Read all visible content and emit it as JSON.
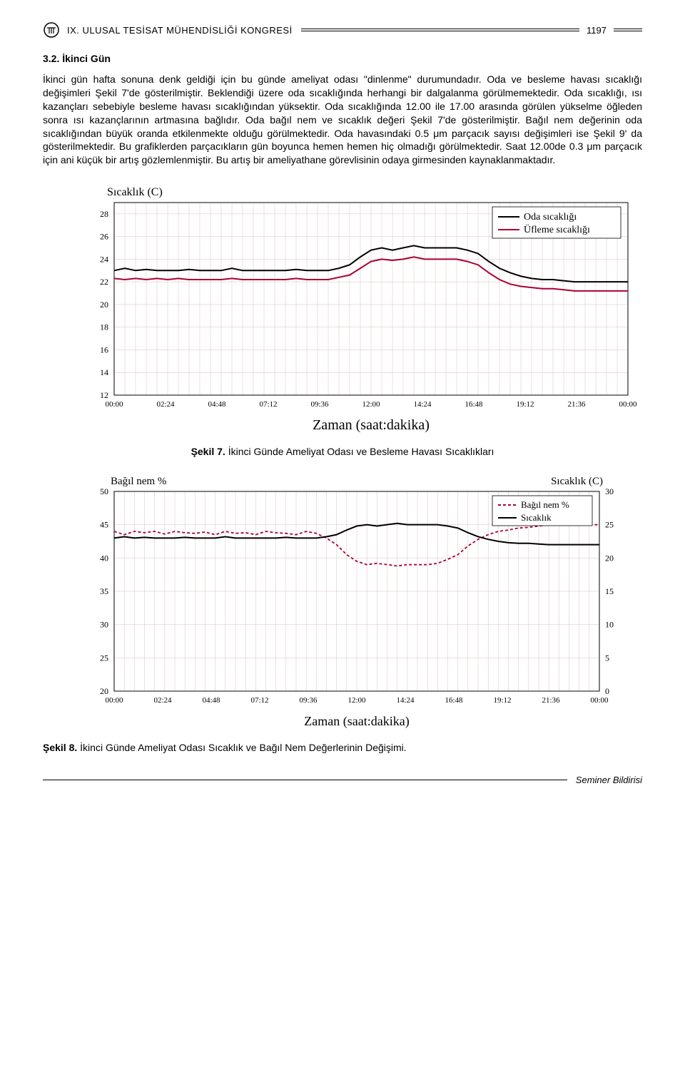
{
  "header": {
    "congress_title": "IX. ULUSAL TESİSAT MÜHENDİSLİĞİ KONGRESİ",
    "page_number": "1197"
  },
  "section": {
    "number": "3.2. İkinci Gün"
  },
  "paragraph": "İkinci gün hafta sonuna denk geldiği için bu günde ameliyat odası \"dinlenme\" durumundadır. Oda ve besleme havası sıcaklığı değişimleri Şekil 7'de gösterilmiştir. Beklendiği üzere oda sıcaklığında herhangi bir dalgalanma görülmemektedir. Oda sıcaklığı, ısı kazançları sebebiyle besleme havası sıcaklığından yüksektir. Oda sıcaklığında 12.00 ile 17.00 arasında görülen yükselme öğleden sonra ısı kazançlarının artmasına bağlıdır. Oda bağıl nem ve sıcaklık değeri Şekil 7'de gösterilmiştir. Bağıl nem değerinin oda sıcaklığından büyük oranda etkilenmekte olduğu görülmektedir. Oda havasındaki 0.5 μm parçacık sayısı değişimleri ise Şekil 9' da gösterilmektedir. Bu grafiklerden parçacıkların gün boyunca hemen hemen hiç olmadığı görülmektedir. Saat 12.00de 0.3 μm parçacık için ani küçük bir artış gözlemlenmiştir. Bu artış bir ameliyathane görevlisinin odaya girmesinden kaynaklanmaktadır.",
  "chart7": {
    "type": "line",
    "y_label": "Sıcaklık (C)",
    "x_label": "Zaman (saat:dakika)",
    "legend": [
      "Oda sıcaklığı",
      "Üfleme sıcaklığı"
    ],
    "legend_colors": [
      "#000000",
      "#aa0033"
    ],
    "y_ticks": [
      12,
      14,
      16,
      18,
      20,
      22,
      24,
      26,
      28
    ],
    "ylim": [
      12,
      29
    ],
    "x_ticks": [
      "00:00",
      "02:24",
      "04:48",
      "07:12",
      "09:36",
      "12:00",
      "14:24",
      "16:48",
      "19:12",
      "21:36",
      "00:00"
    ],
    "grid_color": "#d9c0c0",
    "background_color": "#ffffff",
    "series": {
      "oda": {
        "color": "#000000",
        "width": 2,
        "points": [
          [
            0,
            23.0
          ],
          [
            0.5,
            23.2
          ],
          [
            1,
            23.0
          ],
          [
            1.5,
            23.1
          ],
          [
            2,
            23.0
          ],
          [
            2.5,
            23.0
          ],
          [
            3,
            23.0
          ],
          [
            3.5,
            23.1
          ],
          [
            4,
            23.0
          ],
          [
            4.5,
            23.0
          ],
          [
            5,
            23.0
          ],
          [
            5.5,
            23.2
          ],
          [
            6,
            23.0
          ],
          [
            6.5,
            23.0
          ],
          [
            7,
            23.0
          ],
          [
            7.5,
            23.0
          ],
          [
            8,
            23.0
          ],
          [
            8.5,
            23.1
          ],
          [
            9,
            23.0
          ],
          [
            9.5,
            23.0
          ],
          [
            10,
            23.0
          ],
          [
            10.5,
            23.2
          ],
          [
            11,
            23.5
          ],
          [
            11.5,
            24.2
          ],
          [
            12,
            24.8
          ],
          [
            12.5,
            25.0
          ],
          [
            13,
            24.8
          ],
          [
            13.5,
            25.0
          ],
          [
            14,
            25.2
          ],
          [
            14.5,
            25.0
          ],
          [
            15,
            25.0
          ],
          [
            15.5,
            25.0
          ],
          [
            16,
            25.0
          ],
          [
            16.5,
            24.8
          ],
          [
            17,
            24.5
          ],
          [
            17.5,
            23.8
          ],
          [
            18,
            23.2
          ],
          [
            18.5,
            22.8
          ],
          [
            19,
            22.5
          ],
          [
            19.5,
            22.3
          ],
          [
            20,
            22.2
          ],
          [
            20.5,
            22.2
          ],
          [
            21,
            22.1
          ],
          [
            21.5,
            22.0
          ],
          [
            22,
            22.0
          ],
          [
            22.5,
            22.0
          ],
          [
            23,
            22.0
          ],
          [
            23.5,
            22.0
          ],
          [
            24,
            22.0
          ]
        ]
      },
      "ufleme": {
        "color": "#aa0033",
        "width": 2,
        "points": [
          [
            0,
            22.3
          ],
          [
            0.5,
            22.2
          ],
          [
            1,
            22.3
          ],
          [
            1.5,
            22.2
          ],
          [
            2,
            22.3
          ],
          [
            2.5,
            22.2
          ],
          [
            3,
            22.3
          ],
          [
            3.5,
            22.2
          ],
          [
            4,
            22.2
          ],
          [
            4.5,
            22.2
          ],
          [
            5,
            22.2
          ],
          [
            5.5,
            22.3
          ],
          [
            6,
            22.2
          ],
          [
            6.5,
            22.2
          ],
          [
            7,
            22.2
          ],
          [
            7.5,
            22.2
          ],
          [
            8,
            22.2
          ],
          [
            8.5,
            22.3
          ],
          [
            9,
            22.2
          ],
          [
            9.5,
            22.2
          ],
          [
            10,
            22.2
          ],
          [
            10.5,
            22.4
          ],
          [
            11,
            22.6
          ],
          [
            11.5,
            23.2
          ],
          [
            12,
            23.8
          ],
          [
            12.5,
            24.0
          ],
          [
            13,
            23.9
          ],
          [
            13.5,
            24.0
          ],
          [
            14,
            24.2
          ],
          [
            14.5,
            24.0
          ],
          [
            15,
            24.0
          ],
          [
            15.5,
            24.0
          ],
          [
            16,
            24.0
          ],
          [
            16.5,
            23.8
          ],
          [
            17,
            23.5
          ],
          [
            17.5,
            22.8
          ],
          [
            18,
            22.2
          ],
          [
            18.5,
            21.8
          ],
          [
            19,
            21.6
          ],
          [
            19.5,
            21.5
          ],
          [
            20,
            21.4
          ],
          [
            20.5,
            21.4
          ],
          [
            21,
            21.3
          ],
          [
            21.5,
            21.2
          ],
          [
            22,
            21.2
          ],
          [
            22.5,
            21.2
          ],
          [
            23,
            21.2
          ],
          [
            23.5,
            21.2
          ],
          [
            24,
            21.2
          ]
        ]
      }
    }
  },
  "caption7": {
    "label": "Şekil 7.",
    "text": " İkinci Günde Ameliyat Odası ve Besleme Havası Sıcaklıkları"
  },
  "chart8": {
    "type": "line-dual-axis",
    "y_left_label": "Bağıl nem %",
    "y_right_label": "Sıcaklık (C)",
    "x_label": "Zaman (saat:dakika)",
    "legend": [
      "Bağıl nem %",
      "Sıcaklık"
    ],
    "legend_colors": [
      "#aa0033",
      "#000000"
    ],
    "legend_styles": [
      "dashed",
      "solid"
    ],
    "y_left_ticks": [
      20,
      25,
      30,
      35,
      40,
      45,
      50
    ],
    "y_left_lim": [
      20,
      50
    ],
    "y_right_ticks": [
      0,
      5,
      10,
      15,
      20,
      25,
      30
    ],
    "y_right_lim": [
      0,
      30
    ],
    "x_ticks": [
      "00:00",
      "02:24",
      "04:48",
      "07:12",
      "09:36",
      "12:00",
      "14:24",
      "16:48",
      "19:12",
      "21:36",
      "00:00"
    ],
    "grid_color": "#d9c0c0",
    "background_color": "#ffffff",
    "series": {
      "bagil_nem": {
        "axis": "left",
        "color": "#aa0033",
        "width": 1.8,
        "dash": "4,3",
        "points": [
          [
            0,
            44.0
          ],
          [
            0.5,
            43.5
          ],
          [
            1,
            44.0
          ],
          [
            1.5,
            43.8
          ],
          [
            2,
            44.0
          ],
          [
            2.5,
            43.6
          ],
          [
            3,
            44.0
          ],
          [
            3.5,
            43.8
          ],
          [
            4,
            43.7
          ],
          [
            4.5,
            43.9
          ],
          [
            5,
            43.5
          ],
          [
            5.5,
            44.0
          ],
          [
            6,
            43.7
          ],
          [
            6.5,
            43.8
          ],
          [
            7,
            43.5
          ],
          [
            7.5,
            44.0
          ],
          [
            8,
            43.8
          ],
          [
            8.5,
            43.7
          ],
          [
            9,
            43.5
          ],
          [
            9.5,
            44.0
          ],
          [
            10,
            43.7
          ],
          [
            10.5,
            43.0
          ],
          [
            11,
            42.0
          ],
          [
            11.5,
            40.5
          ],
          [
            12,
            39.5
          ],
          [
            12.5,
            39.0
          ],
          [
            13,
            39.2
          ],
          [
            13.5,
            39.0
          ],
          [
            14,
            38.8
          ],
          [
            14.5,
            39.0
          ],
          [
            15,
            39.0
          ],
          [
            15.5,
            39.0
          ],
          [
            16,
            39.2
          ],
          [
            16.5,
            39.8
          ],
          [
            17,
            40.5
          ],
          [
            17.5,
            41.8
          ],
          [
            18,
            42.8
          ],
          [
            18.5,
            43.5
          ],
          [
            19,
            44.0
          ],
          [
            19.5,
            44.2
          ],
          [
            20,
            44.5
          ],
          [
            20.5,
            44.6
          ],
          [
            21,
            44.8
          ],
          [
            21.5,
            45.0
          ],
          [
            22,
            45.0
          ],
          [
            22.5,
            45.0
          ],
          [
            23,
            45.0
          ],
          [
            23.5,
            45.0
          ],
          [
            24,
            45.0
          ]
        ]
      },
      "sicaklik": {
        "axis": "right",
        "color": "#000000",
        "width": 2,
        "points": [
          [
            0,
            23.0
          ],
          [
            0.5,
            23.2
          ],
          [
            1,
            23.0
          ],
          [
            1.5,
            23.1
          ],
          [
            2,
            23.0
          ],
          [
            2.5,
            23.0
          ],
          [
            3,
            23.0
          ],
          [
            3.5,
            23.1
          ],
          [
            4,
            23.0
          ],
          [
            4.5,
            23.0
          ],
          [
            5,
            23.0
          ],
          [
            5.5,
            23.2
          ],
          [
            6,
            23.0
          ],
          [
            6.5,
            23.0
          ],
          [
            7,
            23.0
          ],
          [
            7.5,
            23.0
          ],
          [
            8,
            23.0
          ],
          [
            8.5,
            23.1
          ],
          [
            9,
            23.0
          ],
          [
            9.5,
            23.0
          ],
          [
            10,
            23.0
          ],
          [
            10.5,
            23.2
          ],
          [
            11,
            23.5
          ],
          [
            11.5,
            24.2
          ],
          [
            12,
            24.8
          ],
          [
            12.5,
            25.0
          ],
          [
            13,
            24.8
          ],
          [
            13.5,
            25.0
          ],
          [
            14,
            25.2
          ],
          [
            14.5,
            25.0
          ],
          [
            15,
            25.0
          ],
          [
            15.5,
            25.0
          ],
          [
            16,
            25.0
          ],
          [
            16.5,
            24.8
          ],
          [
            17,
            24.5
          ],
          [
            17.5,
            23.8
          ],
          [
            18,
            23.2
          ],
          [
            18.5,
            22.8
          ],
          [
            19,
            22.5
          ],
          [
            19.5,
            22.3
          ],
          [
            20,
            22.2
          ],
          [
            20.5,
            22.2
          ],
          [
            21,
            22.1
          ],
          [
            21.5,
            22.0
          ],
          [
            22,
            22.0
          ],
          [
            22.5,
            22.0
          ],
          [
            23,
            22.0
          ],
          [
            23.5,
            22.0
          ],
          [
            24,
            22.0
          ]
        ]
      }
    }
  },
  "caption8": {
    "label": "Şekil 8.",
    "text": " İkinci Günde Ameliyat Odası Sıcaklık ve Bağıl Nem Değerlerinin Değişimi."
  },
  "footer": {
    "label": "Seminer Bildirisi"
  }
}
